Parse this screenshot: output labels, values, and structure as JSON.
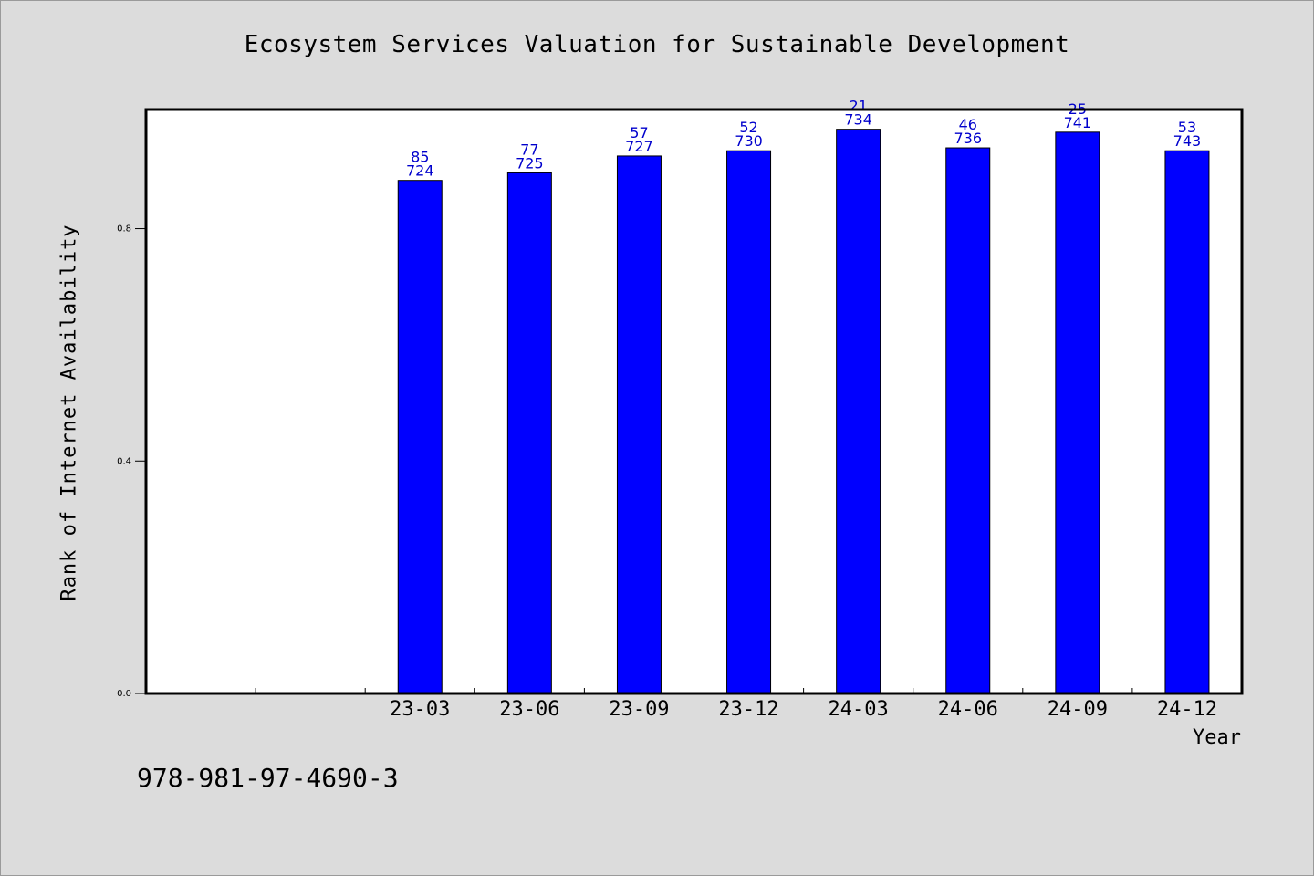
{
  "chart_data": {
    "type": "bar",
    "title": "Ecosystem Services Valuation for Sustainable Development",
    "xlabel": "Year",
    "ylabel": "Rank of Internet Availability",
    "ylim": [
      0,
      1.005
    ],
    "yticks": [
      0.0,
      0.4,
      0.8
    ],
    "ytick_labels": [
      "0.0",
      "0.4",
      "0.8"
    ],
    "categories": [
      "",
      "",
      "23-03",
      "23-06",
      "23-09",
      "23-12",
      "24-03",
      "24-06",
      "24-09",
      "24-12"
    ],
    "values": [
      null,
      null,
      0.883,
      0.896,
      0.925,
      0.934,
      0.971,
      0.939,
      0.966,
      0.934
    ],
    "label_top": [
      null,
      null,
      "85",
      "77",
      "57",
      "52",
      "21",
      "46",
      "25",
      "53"
    ],
    "label_bottom": [
      null,
      null,
      "724",
      "725",
      "727",
      "730",
      "734",
      "736",
      "741",
      "743"
    ],
    "bar_color": "#0000ff",
    "label_color": "#0000cc",
    "grid": false
  },
  "footer": {
    "code": "978-981-97-4690-3"
  }
}
